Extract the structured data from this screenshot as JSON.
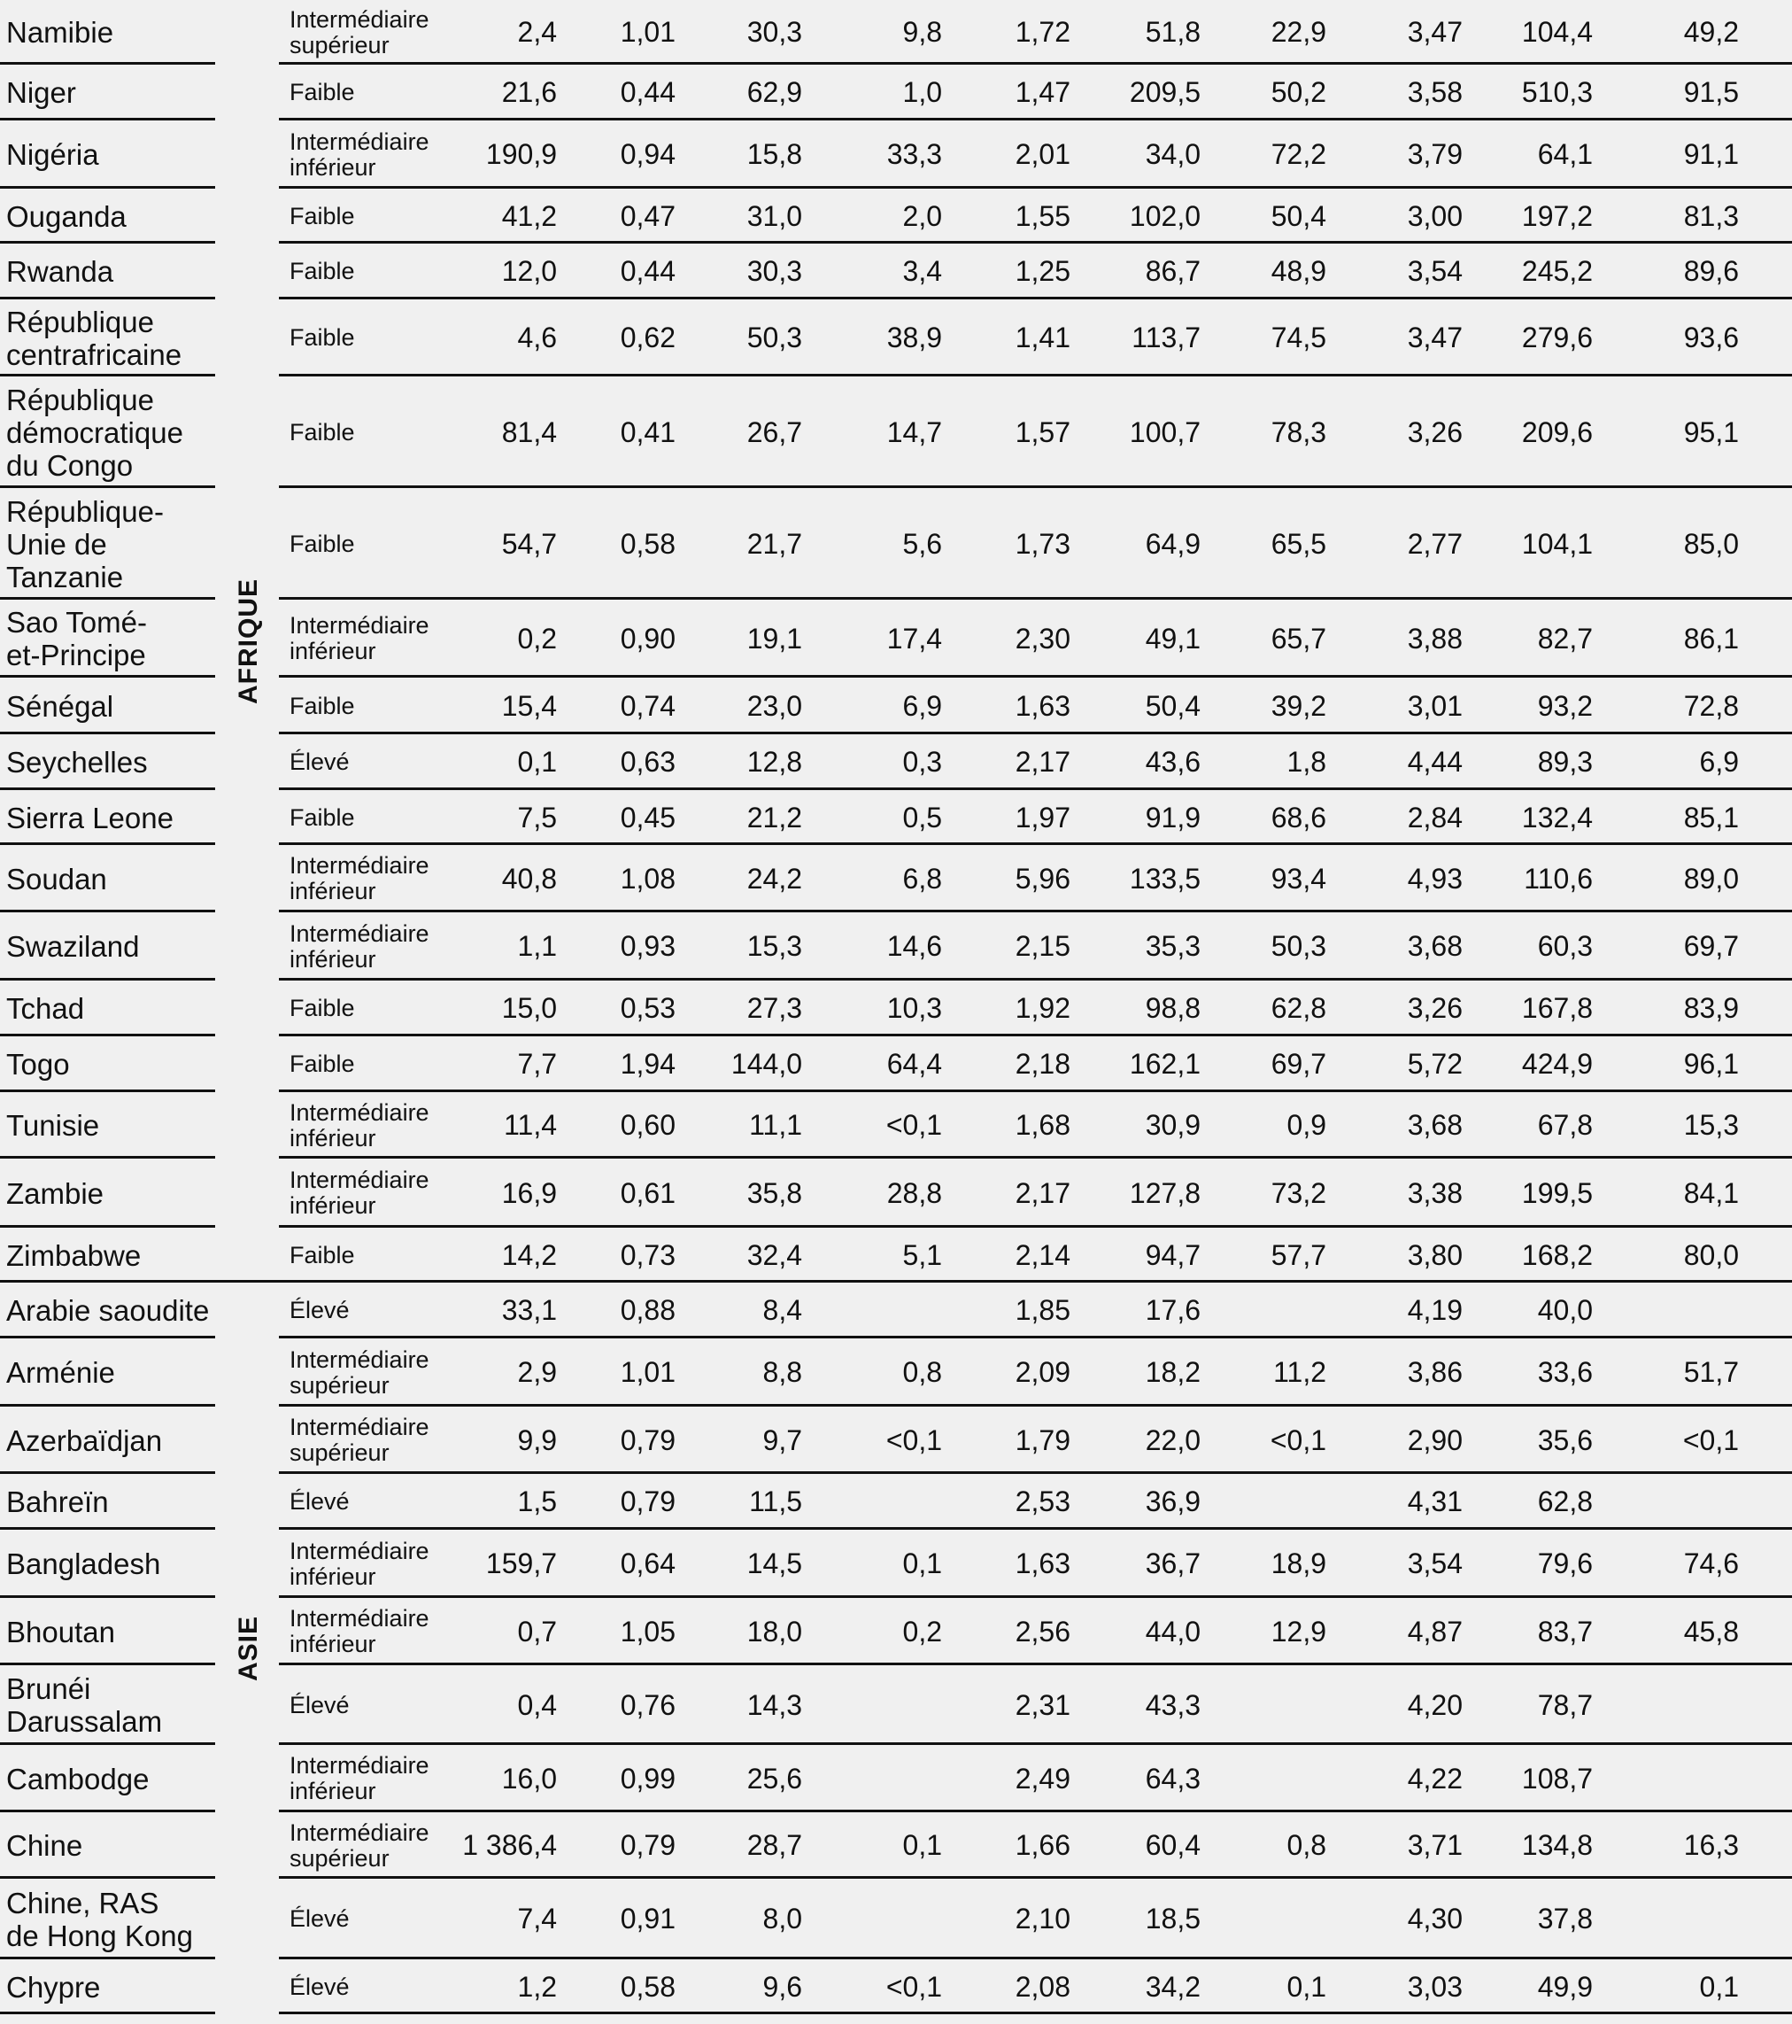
{
  "regions": [
    {
      "label": "AFRIQUE",
      "first_row": 0,
      "last_row": 18
    },
    {
      "label": "ASIE",
      "first_row": 19,
      "last_row": 29
    }
  ],
  "rows": [
    {
      "country": "Namibie",
      "income": "Intermédiaire supérieur",
      "values": [
        "2,4",
        "1,01",
        "30,3",
        "9,8",
        "1,72",
        "51,8",
        "22,9",
        "3,47",
        "104,4",
        "49,2"
      ]
    },
    {
      "country": "Niger",
      "income": "Faible",
      "values": [
        "21,6",
        "0,44",
        "62,9",
        "1,0",
        "1,47",
        "209,5",
        "50,2",
        "3,58",
        "510,3",
        "91,5"
      ]
    },
    {
      "country": "Nigéria",
      "income": "Intermédiaire inférieur",
      "values": [
        "190,9",
        "0,94",
        "15,8",
        "33,3",
        "2,01",
        "34,0",
        "72,2",
        "3,79",
        "64,1",
        "91,1"
      ]
    },
    {
      "country": "Ouganda",
      "income": "Faible",
      "values": [
        "41,2",
        "0,47",
        "31,0",
        "2,0",
        "1,55",
        "102,0",
        "50,4",
        "3,00",
        "197,2",
        "81,3"
      ]
    },
    {
      "country": "Rwanda",
      "income": "Faible",
      "values": [
        "12,0",
        "0,44",
        "30,3",
        "3,4",
        "1,25",
        "86,7",
        "48,9",
        "3,54",
        "245,2",
        "89,6"
      ]
    },
    {
      "country": "République centrafricaine",
      "income": "Faible",
      "values": [
        "4,6",
        "0,62",
        "50,3",
        "38,9",
        "1,41",
        "113,7",
        "74,5",
        "3,47",
        "279,6",
        "93,6"
      ]
    },
    {
      "country": "République démocratique du Congo",
      "income": "Faible",
      "values": [
        "81,4",
        "0,41",
        "26,7",
        "14,7",
        "1,57",
        "100,7",
        "78,3",
        "3,26",
        "209,6",
        "95,1"
      ]
    },
    {
      "country": "République-Unie de Tanzanie",
      "income": "Faible",
      "values": [
        "54,7",
        "0,58",
        "21,7",
        "5,6",
        "1,73",
        "64,9",
        "65,5",
        "2,77",
        "104,1",
        "85,0"
      ]
    },
    {
      "country": "Sao Tomé-et-Principe",
      "income": "Intermédiaire inférieur",
      "values": [
        "0,2",
        "0,90",
        "19,1",
        "17,4",
        "2,30",
        "49,1",
        "65,7",
        "3,88",
        "82,7",
        "86,1"
      ]
    },
    {
      "country": "Sénégal",
      "income": "Faible",
      "values": [
        "15,4",
        "0,74",
        "23,0",
        "6,9",
        "1,63",
        "50,4",
        "39,2",
        "3,01",
        "93,2",
        "72,8"
      ]
    },
    {
      "country": "Seychelles",
      "income": "Élevé",
      "values": [
        "0,1",
        "0,63",
        "12,8",
        "0,3",
        "2,17",
        "43,6",
        "1,8",
        "4,44",
        "89,3",
        "6,9"
      ]
    },
    {
      "country": "Sierra Leone",
      "income": "Faible",
      "values": [
        "7,5",
        "0,45",
        "21,2",
        "0,5",
        "1,97",
        "91,9",
        "68,6",
        "2,84",
        "132,4",
        "85,1"
      ]
    },
    {
      "country": "Soudan",
      "income": "Intermédiaire inférieur",
      "values": [
        "40,8",
        "1,08",
        "24,2",
        "6,8",
        "5,96",
        "133,5",
        "93,4",
        "4,93",
        "110,6",
        "89,0"
      ]
    },
    {
      "country": "Swaziland",
      "income": "Intermédiaire inférieur",
      "values": [
        "1,1",
        "0,93",
        "15,3",
        "14,6",
        "2,15",
        "35,3",
        "50,3",
        "3,68",
        "60,3",
        "69,7"
      ]
    },
    {
      "country": "Tchad",
      "income": "Faible",
      "values": [
        "15,0",
        "0,53",
        "27,3",
        "10,3",
        "1,92",
        "98,8",
        "62,8",
        "3,26",
        "167,8",
        "83,9"
      ]
    },
    {
      "country": "Togo",
      "income": "Faible",
      "values": [
        "7,7",
        "1,94",
        "144,0",
        "64,4",
        "2,18",
        "162,1",
        "69,7",
        "5,72",
        "424,9",
        "96,1"
      ]
    },
    {
      "country": "Tunisie",
      "income": "Intermédiaire inférieur",
      "values": [
        "11,4",
        "0,60",
        "11,1",
        "<0,1",
        "1,68",
        "30,9",
        "0,9",
        "3,68",
        "67,8",
        "15,3"
      ]
    },
    {
      "country": "Zambie",
      "income": "Intermédiaire inférieur",
      "values": [
        "16,9",
        "0,61",
        "35,8",
        "28,8",
        "2,17",
        "127,8",
        "73,2",
        "3,38",
        "199,5",
        "84,1"
      ]
    },
    {
      "country": "Zimbabwe",
      "income": "Faible",
      "values": [
        "14,2",
        "0,73",
        "32,4",
        "5,1",
        "2,14",
        "94,7",
        "57,7",
        "3,80",
        "168,2",
        "80,0"
      ]
    },
    {
      "country": "Arabie saoudite",
      "income": "Élevé",
      "values": [
        "33,1",
        "0,88",
        "8,4",
        "",
        "1,85",
        "17,6",
        "",
        "4,19",
        "40,0",
        ""
      ]
    },
    {
      "country": "Arménie",
      "income": "Intermédiaire supérieur",
      "values": [
        "2,9",
        "1,01",
        "8,8",
        "0,8",
        "2,09",
        "18,2",
        "11,2",
        "3,86",
        "33,6",
        "51,7"
      ]
    },
    {
      "country": "Azerbaïdjan",
      "income": "Intermédiaire supérieur",
      "values": [
        "9,9",
        "0,79",
        "9,7",
        "<0,1",
        "1,79",
        "22,0",
        "<0,1",
        "2,90",
        "35,6",
        "<0,1"
      ]
    },
    {
      "country": "Bahreïn",
      "income": "Élevé",
      "values": [
        "1,5",
        "0,79",
        "11,5",
        "",
        "2,53",
        "36,9",
        "",
        "4,31",
        "62,8",
        ""
      ]
    },
    {
      "country": "Bangladesh",
      "income": "Intermédiaire inférieur",
      "values": [
        "159,7",
        "0,64",
        "14,5",
        "0,1",
        "1,63",
        "36,7",
        "18,9",
        "3,54",
        "79,6",
        "74,6"
      ]
    },
    {
      "country": "Bhoutan",
      "income": "Intermédiaire inférieur",
      "values": [
        "0,7",
        "1,05",
        "18,0",
        "0,2",
        "2,56",
        "44,0",
        "12,9",
        "4,87",
        "83,7",
        "45,8"
      ]
    },
    {
      "country": "Brunéi Darussalam",
      "income": "Élevé",
      "values": [
        "0,4",
        "0,76",
        "14,3",
        "",
        "2,31",
        "43,3",
        "",
        "4,20",
        "78,7",
        ""
      ]
    },
    {
      "country": "Cambodge",
      "income": "Intermédiaire inférieur",
      "values": [
        "16,0",
        "0,99",
        "25,6",
        "",
        "2,49",
        "64,3",
        "",
        "4,22",
        "108,7",
        ""
      ]
    },
    {
      "country": "Chine",
      "income": "Intermédiaire supérieur",
      "values": [
        "1 386,4",
        "0,79",
        "28,7",
        "0,1",
        "1,66",
        "60,4",
        "0,8",
        "3,71",
        "134,8",
        "16,3"
      ]
    },
    {
      "country": "Chine, RAS de Hong Kong",
      "income": "Élevé",
      "values": [
        "7,4",
        "0,91",
        "8,0",
        "",
        "2,10",
        "18,5",
        "",
        "4,30",
        "37,8",
        ""
      ]
    },
    {
      "country": "Chypre",
      "income": "Élevé",
      "values": [
        "1,2",
        "0,58",
        "9,6",
        "<0,1",
        "2,08",
        "34,2",
        "0,1",
        "3,03",
        "49,9",
        "0,1"
      ]
    }
  ]
}
